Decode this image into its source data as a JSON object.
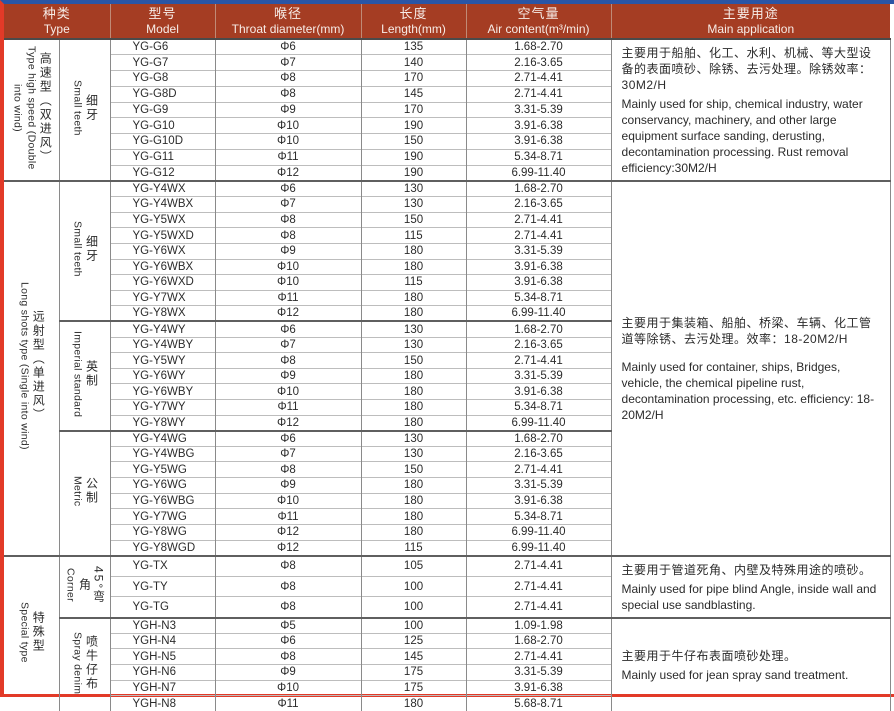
{
  "header": {
    "type": {
      "zh": "种类",
      "en": "Type"
    },
    "model": {
      "zh": "型号",
      "en": "Model"
    },
    "throat": {
      "zh": "喉径",
      "en": "Throat diameter(mm)"
    },
    "length": {
      "zh": "长度",
      "en": "Length(mm)"
    },
    "air": {
      "zh": "空气量",
      "en": "Air content(m³/min)"
    },
    "app": {
      "zh": "主要用途",
      "en": "Main application"
    }
  },
  "colors": {
    "header_bg": "#a53d23",
    "header_text": "#f7ece7",
    "frame_red": "#e23a28",
    "frame_blue": "#2a55a5",
    "grid_gray": "#8a8a8a"
  },
  "groups": [
    {
      "type": {
        "zh": "高速型（双进风）",
        "en": "Type high speed (Double into wind)"
      },
      "application": {
        "zh": "主要用于船舶、化工、水利、机械、等大型设备的表面喷砂、除锈、去污处理。除锈效率：30M2/H",
        "en": "Mainly used for ship, chemical industry, water conservancy, machinery, and other large equipment surface sanding, derusting, decontamination processing. Rust removal efficiency:30M2/H"
      },
      "subgroups": [
        {
          "label": {
            "zh": "细牙",
            "en": "Small teeth"
          },
          "rows": [
            [
              "YG-G6",
              "Φ6",
              "135",
              "1.68-2.70"
            ],
            [
              "YG-G7",
              "Φ7",
              "140",
              "2.16-3.65"
            ],
            [
              "YG-G8",
              "Φ8",
              "170",
              "2.71-4.41"
            ],
            [
              "YG-G8D",
              "Φ8",
              "145",
              "2.71-4.41"
            ],
            [
              "YG-G9",
              "Φ9",
              "170",
              "3.31-5.39"
            ],
            [
              "YG-G10",
              "Φ10",
              "190",
              "3.91-6.38"
            ],
            [
              "YG-G10D",
              "Φ10",
              "150",
              "3.91-6.38"
            ],
            [
              "YG-G11",
              "Φ11",
              "190",
              "5.34-8.71"
            ],
            [
              "YG-G12",
              "Φ12",
              "190",
              "6.99-11.40"
            ]
          ]
        }
      ]
    },
    {
      "type": {
        "zh": "远射型（单进风）",
        "en": "Long shots type (Single into wind)"
      },
      "application": {
        "zh": "主要用于集装箱、船舶、桥梁、车辆、化工管道等除锈、去污处理。效率：18-20M2/H",
        "en": "Mainly used for container, ships, Bridges, vehicle, the chemical pipeline rust, decontamination processing, etc. efficiency: 18-20M2/H"
      },
      "subgroups": [
        {
          "label": {
            "zh": "细牙",
            "en": "Small teeth"
          },
          "rows": [
            [
              "YG-Y4WX",
              "Φ6",
              "130",
              "1.68-2.70"
            ],
            [
              "YG-Y4WBX",
              "Φ7",
              "130",
              "2.16-3.65"
            ],
            [
              "YG-Y5WX",
              "Φ8",
              "150",
              "2.71-4.41"
            ],
            [
              "YG-Y5WXD",
              "Φ8",
              "115",
              "2.71-4.41"
            ],
            [
              "YG-Y6WX",
              "Φ9",
              "180",
              "3.31-5.39"
            ],
            [
              "YG-Y6WBX",
              "Φ10",
              "180",
              "3.91-6.38"
            ],
            [
              "YG-Y6WXD",
              "Φ10",
              "115",
              "3.91-6.38"
            ],
            [
              "YG-Y7WX",
              "Φ11",
              "180",
              "5.34-8.71"
            ],
            [
              "YG-Y8WX",
              "Φ12",
              "180",
              "6.99-11.40"
            ]
          ]
        },
        {
          "label": {
            "zh": "英制",
            "en": "Imperial standard"
          },
          "rows": [
            [
              "YG-Y4WY",
              "Φ6",
              "130",
              "1.68-2.70"
            ],
            [
              "YG-Y4WBY",
              "Φ7",
              "130",
              "2.16-3.65"
            ],
            [
              "YG-Y5WY",
              "Φ8",
              "150",
              "2.71-4.41"
            ],
            [
              "YG-Y6WY",
              "Φ9",
              "180",
              "3.31-5.39"
            ],
            [
              "YG-Y6WBY",
              "Φ10",
              "180",
              "3.91-6.38"
            ],
            [
              "YG-Y7WY",
              "Φ11",
              "180",
              "5.34-8.71"
            ],
            [
              "YG-Y8WY",
              "Φ12",
              "180",
              "6.99-11.40"
            ]
          ]
        },
        {
          "label": {
            "zh": "公制",
            "en": "Metric"
          },
          "rows": [
            [
              "YG-Y4WG",
              "Φ6",
              "130",
              "1.68-2.70"
            ],
            [
              "YG-Y4WBG",
              "Φ7",
              "130",
              "2.16-3.65"
            ],
            [
              "YG-Y5WG",
              "Φ8",
              "150",
              "2.71-4.41"
            ],
            [
              "YG-Y6WG",
              "Φ9",
              "180",
              "3.31-5.39"
            ],
            [
              "YG-Y6WBG",
              "Φ10",
              "180",
              "3.91-6.38"
            ],
            [
              "YG-Y7WG",
              "Φ11",
              "180",
              "5.34-8.71"
            ],
            [
              "YG-Y8WG",
              "Φ12",
              "180",
              "6.99-11.40"
            ],
            [
              "YG-Y8WGD",
              "Φ12",
              "115",
              "6.99-11.40"
            ]
          ]
        }
      ]
    },
    {
      "type": {
        "zh": "特殊型",
        "en": "Special type"
      },
      "subgroups": [
        {
          "label": {
            "zh": "45°弯角",
            "en": "Corner"
          },
          "application": {
            "zh": "主要用于管道死角、内壁及特殊用途的喷砂。",
            "en": "Mainly used for pipe blind Angle, inside wall and special use sandblasting."
          },
          "rows": [
            [
              "YG-TX",
              "Φ8",
              "105",
              "2.71-4.41"
            ],
            [
              "YG-TY",
              "Φ8",
              "100",
              "2.71-4.41"
            ],
            [
              "YG-TG",
              "Φ8",
              "100",
              "2.71-4.41"
            ]
          ]
        },
        {
          "label": {
            "zh": "喷牛仔布",
            "en": "Spray denim"
          },
          "application": {
            "zh": "主要用于牛仔布表面喷砂处理。",
            "en": "Mainly used for jean spray sand treatment."
          },
          "rows": [
            [
              "YGH-N3",
              "Φ5",
              "100",
              "1.09-1.98"
            ],
            [
              "YGH-N4",
              "Φ6",
              "125",
              "1.68-2.70"
            ],
            [
              "YGH-N5",
              "Φ8",
              "145",
              "2.71-4.41"
            ],
            [
              "YGH-N6",
              "Φ9",
              "175",
              "3.31-5.39"
            ],
            [
              "YGH-N7",
              "Φ10",
              "175",
              "3.91-6.38"
            ],
            [
              "YGH-N8",
              "Φ11",
              "180",
              "5.68-8.71"
            ]
          ]
        }
      ]
    }
  ]
}
